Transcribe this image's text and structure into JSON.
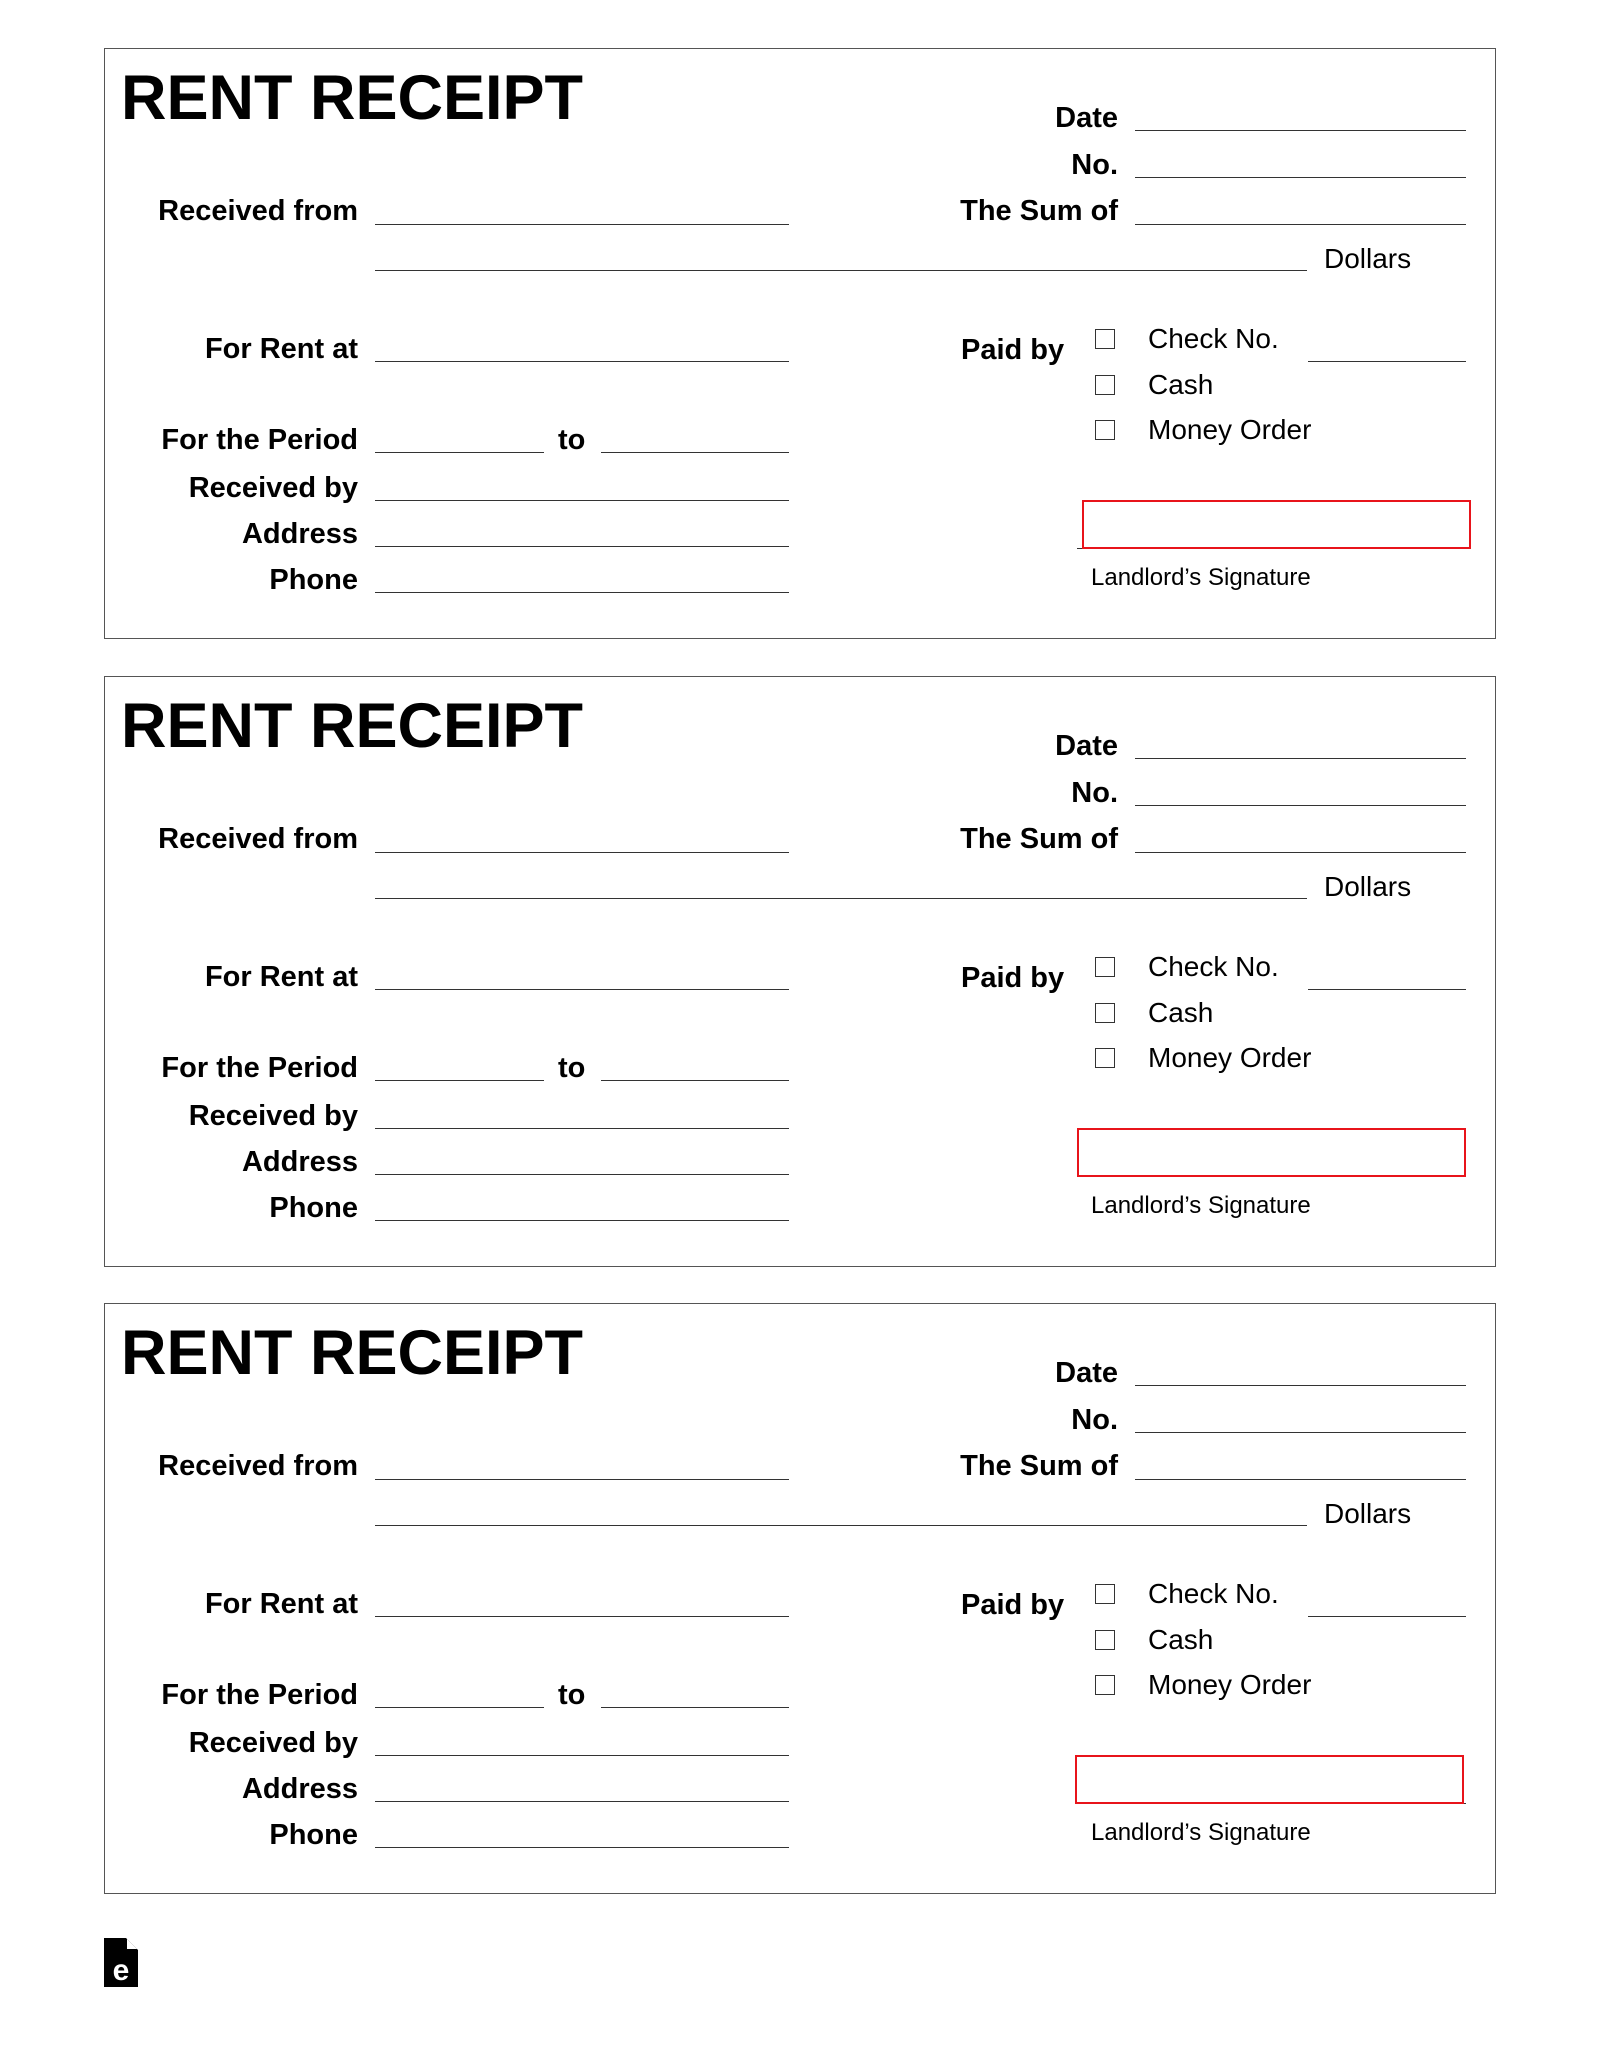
{
  "receipts": [
    {
      "title": "RENT RECEIPT",
      "date_label": "Date",
      "no_label": "No.",
      "received_from_label": "Received from",
      "sum_of_label": "The Sum of",
      "dollars_label": "Dollars",
      "for_rent_at_label": "For Rent at",
      "paid_by_label": "Paid by",
      "payment_options": [
        "Check No.",
        "Cash",
        "Money Order"
      ],
      "for_the_period_label": "For the Period",
      "to_label": "to",
      "received_by_label": "Received by",
      "address_label": "Address",
      "phone_label": "Phone",
      "signature_label": "Landlord’s Signature"
    },
    {
      "title": "RENT RECEIPT",
      "date_label": "Date",
      "no_label": "No.",
      "received_from_label": "Received from",
      "sum_of_label": "The Sum of",
      "dollars_label": "Dollars",
      "for_rent_at_label": "For Rent at",
      "paid_by_label": "Paid by",
      "payment_options": [
        "Check No.",
        "Cash",
        "Money Order"
      ],
      "for_the_period_label": "For the Period",
      "to_label": "to",
      "received_by_label": "Received by",
      "address_label": "Address",
      "phone_label": "Phone",
      "signature_label": "Landlord’s Signature"
    },
    {
      "title": "RENT RECEIPT",
      "date_label": "Date",
      "no_label": "No.",
      "received_from_label": "Received from",
      "sum_of_label": "The Sum of",
      "dollars_label": "Dollars",
      "for_rent_at_label": "For Rent at",
      "paid_by_label": "Paid by",
      "payment_options": [
        "Check No.",
        "Cash",
        "Money Order"
      ],
      "for_the_period_label": "For the Period",
      "to_label": "to",
      "received_by_label": "Received by",
      "address_label": "Address",
      "phone_label": "Phone",
      "signature_label": "Landlord’s Signature"
    }
  ],
  "colors": {
    "signature_highlight": "#e8141b",
    "text": "#000000"
  },
  "footer": {
    "logo_icon": "eforms-logo-icon",
    "logo_letter": "e"
  }
}
